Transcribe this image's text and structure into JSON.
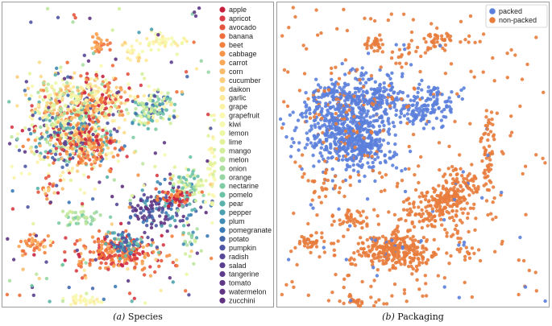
{
  "chart_data": [
    {
      "type": "scatter",
      "panel_label": "(a)",
      "title": "Species",
      "xlabel": "",
      "ylabel": "",
      "legend": "right",
      "series": [
        {
          "name": "apple",
          "color": "#c7203f"
        },
        {
          "name": "apricot",
          "color": "#d83c46"
        },
        {
          "name": "avocado",
          "color": "#e4563f"
        },
        {
          "name": "banana",
          "color": "#ef6e3b"
        },
        {
          "name": "beet",
          "color": "#f3803c"
        },
        {
          "name": "cabbage",
          "color": "#f69449"
        },
        {
          "name": "carrot",
          "color": "#f8a95a"
        },
        {
          "name": "corn",
          "color": "#fabb6b"
        },
        {
          "name": "cucumber",
          "color": "#fbcd7d"
        },
        {
          "name": "daikon",
          "color": "#fcdb8c"
        },
        {
          "name": "garlic",
          "color": "#fde99a"
        },
        {
          "name": "grape",
          "color": "#fdf2a8"
        },
        {
          "name": "grapefruit",
          "color": "#fbf8b0"
        },
        {
          "name": "kiwi",
          "color": "#f5fab0"
        },
        {
          "name": "lemon",
          "color": "#edf8a5"
        },
        {
          "name": "lime",
          "color": "#e2f39c"
        },
        {
          "name": "mango",
          "color": "#d2ee9b"
        },
        {
          "name": "melon",
          "color": "#c0e79f"
        },
        {
          "name": "onion",
          "color": "#acdfa2"
        },
        {
          "name": "orange",
          "color": "#97d6a4"
        },
        {
          "name": "nectarine",
          "color": "#80cca5"
        },
        {
          "name": "pomelo",
          "color": "#6cc2a6"
        },
        {
          "name": "pear",
          "color": "#5ab2ab"
        },
        {
          "name": "pepper",
          "color": "#4ba0b0"
        },
        {
          "name": "plum",
          "color": "#3f8db5"
        },
        {
          "name": "pomegranate",
          "color": "#3b7ab6"
        },
        {
          "name": "potato",
          "color": "#4568ad"
        },
        {
          "name": "pumpkin",
          "color": "#4f56a3"
        },
        {
          "name": "radish",
          "color": "#574898"
        },
        {
          "name": "salad",
          "color": "#5a3f8f"
        },
        {
          "name": "tangerine",
          "color": "#5e3a8a"
        },
        {
          "name": "tomato",
          "color": "#5f3886"
        },
        {
          "name": "watermelon",
          "color": "#603584"
        },
        {
          "name": "zucchini",
          "color": "#5e3181"
        }
      ]
    },
    {
      "type": "scatter",
      "panel_label": "(b)",
      "title": "Packaging",
      "xlabel": "",
      "ylabel": "",
      "legend": "top-right",
      "series": [
        {
          "name": "packed",
          "color": "#5b7fdc"
        },
        {
          "name": "non-packed",
          "color": "#e87c3c"
        }
      ]
    }
  ]
}
